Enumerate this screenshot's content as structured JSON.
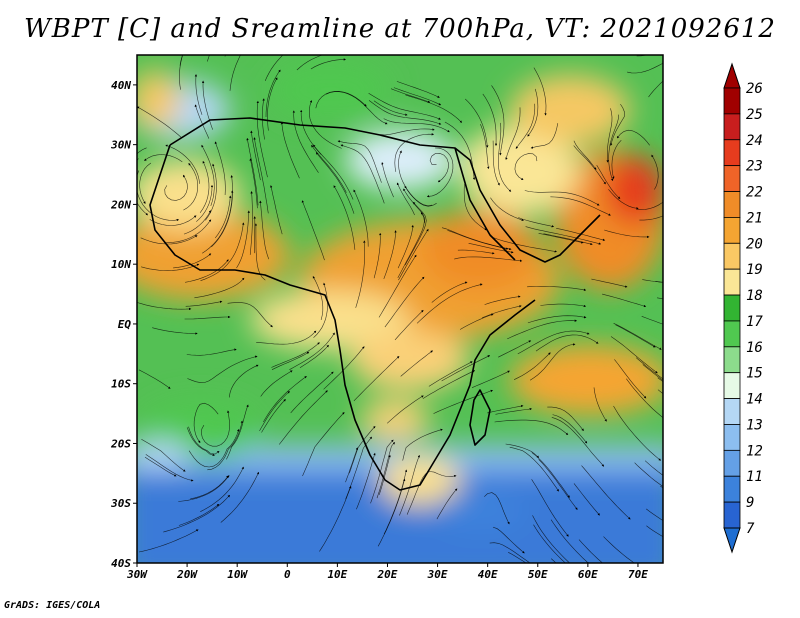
{
  "title": "WBPT [C] and Sreamline at 700hPa, VT: 2021092612",
  "credit": "GrADS: IGES/COLA",
  "map": {
    "lon_range": [
      -30,
      75
    ],
    "lat_range": [
      -40,
      45
    ],
    "lon_ticks": [
      {
        "value": -30,
        "label": "30W"
      },
      {
        "value": -20,
        "label": "20W"
      },
      {
        "value": -10,
        "label": "10W"
      },
      {
        "value": 0,
        "label": "0"
      },
      {
        "value": 10,
        "label": "10E"
      },
      {
        "value": 20,
        "label": "20E"
      },
      {
        "value": 30,
        "label": "30E"
      },
      {
        "value": 40,
        "label": "40E"
      },
      {
        "value": 50,
        "label": "50E"
      },
      {
        "value": 60,
        "label": "60E"
      },
      {
        "value": 70,
        "label": "70E"
      }
    ],
    "lat_ticks": [
      {
        "value": 40,
        "label": "40N"
      },
      {
        "value": 30,
        "label": "30N"
      },
      {
        "value": 20,
        "label": "20N"
      },
      {
        "value": 10,
        "label": "10N"
      },
      {
        "value": 0,
        "label": "EQ"
      },
      {
        "value": -10,
        "label": "10S"
      },
      {
        "value": -20,
        "label": "20S"
      },
      {
        "value": -30,
        "label": "30S"
      },
      {
        "value": -40,
        "label": "40S"
      }
    ]
  },
  "colorbar": {
    "labels": [
      "26",
      "25",
      "24",
      "23",
      "22",
      "21",
      "20",
      "19",
      "18",
      "17",
      "16",
      "15",
      "14",
      "13",
      "12",
      "11",
      "9",
      "7"
    ],
    "colors": [
      "#a00000",
      "#c81e1e",
      "#e63c1e",
      "#f06428",
      "#f08c28",
      "#f5a532",
      "#fac864",
      "#fae696",
      "#32b432",
      "#50c850",
      "#8cdc8c",
      "#e6fae6",
      "#b4d7f5",
      "#8cbef0",
      "#64a0e6",
      "#3c82dc",
      "#2864d2"
    ],
    "top_color": "#a00000",
    "bottom_color": "#1e6ed2"
  }
}
